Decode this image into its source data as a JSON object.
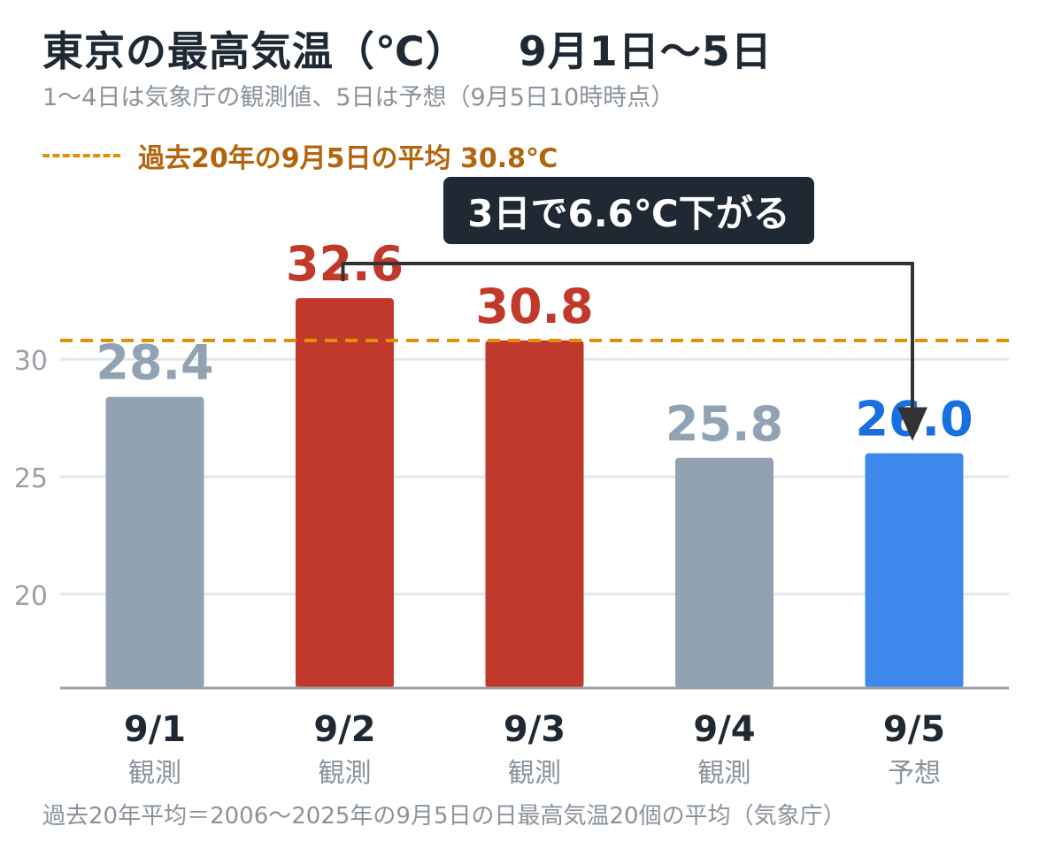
{
  "title": "東京の最高気温（℃）",
  "title_period": "9月1日〜5日",
  "subtitle": "1〜4日は気象庁の観測値、5日は予想（9月5日10時時点）",
  "reference_line_label": "過去20年の9月5日の平均 30.8℃",
  "annotation": "3日で6.6℃下がる",
  "footnote": "過去20年平均＝2006〜2025年の9月5日の日最高気温20個の平均（気象庁）",
  "colors": {
    "observed_high": "#c0392b",
    "observed_normal": "#91a3b3",
    "forecast": "#3f88eb",
    "forecast_label": "#1a6fe0",
    "normal_label": "#91a3b3",
    "reference_line": "#e0900a",
    "reference_text": "#b3650e",
    "arrow": "#333333",
    "grid": "#e3e7ea",
    "axis": "#9aa0a6"
  },
  "chart_data": {
    "type": "bar",
    "categories": [
      "9/1",
      "9/2",
      "9/3",
      "9/4",
      "9/5"
    ],
    "category_sublabels": [
      "観測",
      "観測",
      "観測",
      "観測",
      "予想"
    ],
    "values": [
      28.4,
      32.6,
      30.8,
      25.8,
      26.0
    ],
    "value_labels": [
      "28.4",
      "32.6",
      "30.8",
      "25.8",
      "26.0"
    ],
    "bar_colors": [
      "#91a3b3",
      "#c0392b",
      "#c0392b",
      "#91a3b3",
      "#3f88eb"
    ],
    "label_colors": [
      "#91a3b3",
      "#c0392b",
      "#c0392b",
      "#91a3b3",
      "#1a6fe0"
    ],
    "ylim": [
      16,
      34
    ],
    "yticks": [
      20,
      25,
      30
    ],
    "ytick_labels": [
      "20",
      "25",
      "30"
    ],
    "reference_line": {
      "value": 30.8
    },
    "annotation_arrow": {
      "from": "9/2",
      "to": "9/5"
    },
    "grid": true,
    "xlabel": "",
    "ylabel": ""
  }
}
